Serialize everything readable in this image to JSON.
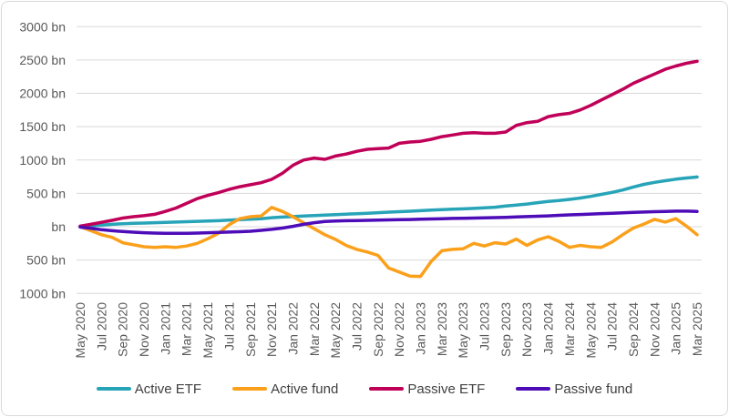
{
  "chart_data": {
    "type": "line",
    "title": "",
    "unit": "bn",
    "grid": true,
    "legend_position": "bottom",
    "y_axis": {
      "tick_labels": [
        "3000 bn",
        "2500 bn",
        "2000 bn",
        "1500 bn",
        "1000 bn",
        "500 bn",
        "bn",
        "500 bn",
        "1000 bn"
      ],
      "tick_values": [
        3000,
        2500,
        2000,
        1500,
        1000,
        500,
        0,
        -500,
        -1000
      ],
      "ylim": [
        -1000,
        3000
      ],
      "note": "negative values labeled without minus sign"
    },
    "x_axis": {
      "tick_labels": [
        "May 2020",
        "Jul 2020",
        "Sep 2020",
        "Nov 2020",
        "Jan 2021",
        "Mar 2021",
        "May 2021",
        "Jul 2021",
        "Sep 2021",
        "Nov 2021",
        "Jan 2022",
        "Mar 2022",
        "May 2022",
        "Jul 2022",
        "Sep 2022",
        "Nov 2022",
        "Jan 2023",
        "Mar 2023",
        "May 2023",
        "Jul 2023",
        "Sep 2023",
        "Nov 2023",
        "Jan 2024",
        "Mar 2024",
        "May 2024",
        "Jul 2024",
        "Sep 2024",
        "Nov 2024",
        "Jan 2025",
        "Mar 2025"
      ],
      "label_every_n_points": 2,
      "points_per_series": 59,
      "rotation_degrees": -90
    },
    "series": [
      {
        "name": "Active ETF",
        "color": "#27A4B8",
        "values": [
          5,
          15,
          25,
          35,
          45,
          50,
          55,
          60,
          65,
          70,
          75,
          80,
          85,
          90,
          98,
          105,
          112,
          120,
          135,
          145,
          152,
          160,
          168,
          175,
          180,
          188,
          195,
          202,
          210,
          218,
          225,
          232,
          240,
          248,
          255,
          262,
          268,
          275,
          282,
          292,
          310,
          325,
          340,
          360,
          378,
          392,
          410,
          430,
          455,
          485,
          515,
          550,
          595,
          635,
          665,
          690,
          712,
          730,
          745
        ]
      },
      {
        "name": "Active fund",
        "color": "#FBA01B",
        "values": [
          0,
          -60,
          -120,
          -160,
          -240,
          -270,
          -300,
          -310,
          -300,
          -310,
          -290,
          -250,
          -180,
          -100,
          30,
          120,
          150,
          160,
          290,
          230,
          150,
          60,
          -30,
          -120,
          -190,
          -280,
          -340,
          -380,
          -430,
          -620,
          -680,
          -740,
          -745,
          -520,
          -360,
          -340,
          -330,
          -250,
          -290,
          -240,
          -260,
          -185,
          -280,
          -200,
          -150,
          -220,
          -310,
          -280,
          -300,
          -310,
          -230,
          -120,
          -20,
          40,
          110,
          70,
          120,
          10,
          -120
        ]
      },
      {
        "name": "Passive ETF",
        "color": "#C00058",
        "values": [
          10,
          35,
          65,
          95,
          130,
          150,
          165,
          185,
          230,
          280,
          350,
          420,
          470,
          510,
          560,
          600,
          630,
          660,
          710,
          800,
          920,
          1000,
          1030,
          1010,
          1060,
          1090,
          1130,
          1160,
          1170,
          1180,
          1250,
          1270,
          1280,
          1310,
          1350,
          1375,
          1400,
          1410,
          1400,
          1400,
          1420,
          1520,
          1560,
          1580,
          1650,
          1680,
          1700,
          1750,
          1820,
          1900,
          1980,
          2060,
          2150,
          2220,
          2290,
          2360,
          2410,
          2450,
          2480
        ]
      },
      {
        "name": "Passive fund",
        "color": "#4D0CB8",
        "values": [
          -5,
          -25,
          -45,
          -60,
          -72,
          -82,
          -90,
          -96,
          -100,
          -100,
          -98,
          -95,
          -90,
          -85,
          -80,
          -75,
          -68,
          -55,
          -40,
          -20,
          5,
          35,
          60,
          78,
          85,
          90,
          92,
          95,
          98,
          102,
          105,
          108,
          112,
          116,
          120,
          124,
          127,
          130,
          133,
          137,
          141,
          146,
          151,
          157,
          163,
          170,
          177,
          183,
          190,
          196,
          202,
          208,
          214,
          220,
          225,
          230,
          233,
          233,
          230
        ]
      }
    ],
    "style": {
      "gridline_color": "#d9d9d9",
      "axis_text_color": "#595959",
      "legend_text_color": "#404040",
      "frame_border_color": "#d9d9d9",
      "background_color": "#ffffff",
      "line_width": 3.5
    }
  }
}
